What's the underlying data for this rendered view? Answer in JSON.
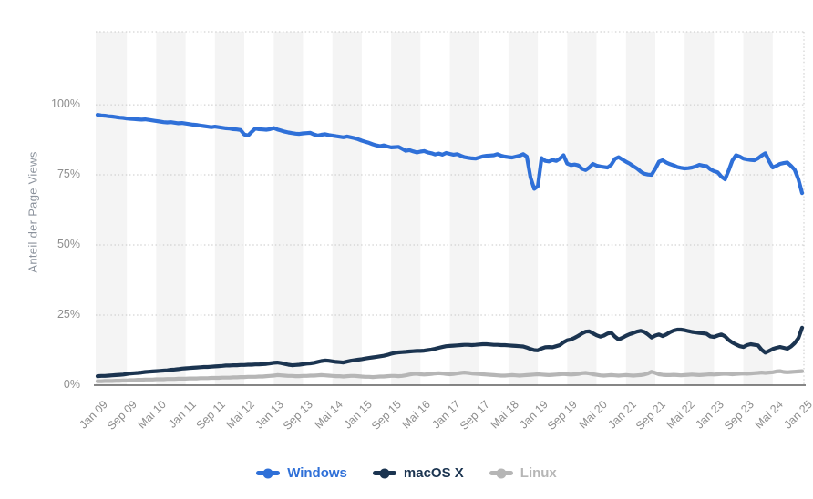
{
  "chart": {
    "y_axis_title": "Anteil der Page Views"
  },
  "colors": {
    "windows": "#2f70d8",
    "macos": "#1b3450",
    "linux": "#b6b6b6",
    "stripe": "#f4f4f4",
    "grid": "#c9c9c9",
    "axis": "#3f3f3f",
    "tick_text": "#8d8d8d"
  },
  "chart_data": {
    "type": "line",
    "title": "",
    "xlabel": "",
    "ylabel": "Anteil der Page Views",
    "ylim": [
      0,
      126
    ],
    "grid": "horizontal-dotted",
    "legend_position": "bottom-center",
    "x_unit": "monthly, Jan 2009 - Jan 2025",
    "x_tick_every_n_points": 8,
    "x_tick_labels": [
      "Jan 09",
      "Sep 09",
      "Mai 10",
      "Jan 11",
      "Sep 11",
      "Mai 12",
      "Jan 13",
      "Sep 13",
      "Mai 14",
      "Jan 15",
      "Sep 15",
      "Mai 16",
      "Jan 17",
      "Sep 17",
      "Mai 18",
      "Jan 19",
      "Sep 19",
      "Mai 20",
      "Jan 21",
      "Sep 21",
      "Mai 22",
      "Jan 23",
      "Sep 23",
      "Mai 24",
      "Jan 25"
    ],
    "y_ticks": [
      {
        "label": "0%",
        "value": 0
      },
      {
        "label": "25%",
        "value": 25
      },
      {
        "label": "50%",
        "value": 50
      },
      {
        "label": "75%",
        "value": 75
      },
      {
        "label": "100%",
        "value": 100
      }
    ],
    "series": [
      {
        "name": "Windows",
        "color": "#2f70d8",
        "values": [
          96.4,
          96.2,
          96.1,
          95.9,
          95.8,
          95.6,
          95.4,
          95.3,
          95.1,
          95.0,
          94.9,
          94.8,
          94.7,
          94.8,
          94.6,
          94.4,
          94.2,
          94.0,
          93.8,
          93.7,
          93.8,
          93.6,
          93.4,
          93.5,
          93.3,
          93.1,
          92.9,
          92.8,
          92.6,
          92.4,
          92.2,
          92.0,
          92.2,
          92.0,
          91.8,
          91.6,
          91.5,
          91.3,
          91.2,
          91.0,
          89.4,
          89.0,
          90.3,
          91.5,
          91.3,
          91.2,
          91.1,
          91.3,
          91.7,
          91.2,
          90.8,
          90.4,
          90.1,
          89.9,
          89.7,
          89.6,
          89.8,
          89.9,
          90.0,
          89.4,
          89.0,
          89.3,
          89.5,
          89.2,
          89.0,
          88.8,
          88.6,
          88.4,
          88.7,
          88.4,
          88.1,
          87.7,
          87.2,
          86.8,
          86.4,
          85.9,
          85.5,
          85.2,
          85.5,
          85.1,
          84.8,
          84.9,
          85.0,
          84.3,
          83.6,
          83.8,
          83.4,
          83.0,
          83.3,
          83.5,
          83.0,
          82.7,
          82.3,
          82.6,
          82.2,
          82.8,
          82.5,
          82.2,
          82.4,
          81.8,
          81.3,
          81.1,
          80.9,
          80.8,
          81.2,
          81.6,
          81.8,
          81.9,
          82.0,
          82.4,
          81.8,
          81.5,
          81.3,
          81.2,
          81.5,
          81.8,
          82.4,
          81.5,
          74.0,
          70.0,
          71.0,
          81.0,
          80.0,
          79.8,
          80.3,
          80.0,
          80.8,
          82.0,
          79.0,
          78.5,
          78.7,
          78.4,
          77.2,
          76.7,
          77.6,
          78.9,
          78.3,
          78.0,
          77.8,
          77.6,
          78.6,
          80.7,
          81.3,
          80.5,
          79.7,
          79.0,
          78.1,
          77.3,
          76.2,
          75.4,
          75.1,
          75.0,
          77.2,
          79.7,
          80.2,
          79.4,
          78.8,
          78.4,
          77.8,
          77.5,
          77.3,
          77.4,
          77.6,
          78.0,
          78.6,
          78.3,
          78.1,
          77.0,
          76.3,
          75.9,
          74.4,
          73.4,
          76.6,
          80.1,
          82.0,
          81.5,
          80.8,
          80.5,
          80.3,
          80.2,
          80.9,
          81.9,
          82.7,
          79.9,
          77.6,
          78.2,
          78.9,
          79.2,
          79.4,
          78.2,
          76.8,
          73.4,
          68.5
        ]
      },
      {
        "name": "macOS X",
        "color": "#1b3450",
        "values": [
          3.2,
          3.3,
          3.3,
          3.4,
          3.5,
          3.6,
          3.7,
          3.8,
          4.0,
          4.2,
          4.3,
          4.4,
          4.5,
          4.7,
          4.8,
          4.9,
          5.0,
          5.1,
          5.2,
          5.3,
          5.5,
          5.6,
          5.7,
          5.9,
          6.0,
          6.1,
          6.2,
          6.3,
          6.4,
          6.5,
          6.5,
          6.6,
          6.7,
          6.8,
          6.9,
          7.0,
          7.0,
          7.1,
          7.1,
          7.2,
          7.2,
          7.3,
          7.3,
          7.4,
          7.4,
          7.5,
          7.6,
          7.8,
          8.0,
          8.1,
          7.9,
          7.6,
          7.3,
          7.1,
          7.2,
          7.3,
          7.5,
          7.7,
          7.8,
          8.0,
          8.3,
          8.6,
          8.8,
          8.7,
          8.5,
          8.3,
          8.2,
          8.1,
          8.4,
          8.7,
          8.9,
          9.1,
          9.3,
          9.5,
          9.7,
          9.9,
          10.1,
          10.3,
          10.5,
          10.8,
          11.2,
          11.5,
          11.7,
          11.8,
          11.9,
          12.0,
          12.1,
          12.2,
          12.2,
          12.3,
          12.5,
          12.7,
          13.0,
          13.3,
          13.6,
          13.9,
          14.0,
          14.1,
          14.2,
          14.3,
          14.4,
          14.4,
          14.3,
          14.4,
          14.5,
          14.6,
          14.6,
          14.5,
          14.4,
          14.4,
          14.3,
          14.3,
          14.2,
          14.1,
          14.0,
          13.9,
          13.8,
          13.4,
          12.9,
          12.5,
          12.4,
          13.1,
          13.5,
          13.6,
          13.5,
          13.9,
          14.3,
          15.3,
          16.0,
          16.3,
          16.9,
          17.6,
          18.4,
          19.1,
          19.2,
          18.5,
          17.8,
          17.3,
          17.7,
          18.4,
          18.7,
          17.3,
          16.3,
          16.9,
          17.6,
          18.2,
          18.6,
          19.1,
          19.4,
          19.0,
          18.1,
          17.0,
          17.7,
          18.1,
          17.5,
          18.1,
          18.9,
          19.5,
          19.8,
          19.8,
          19.6,
          19.3,
          19.0,
          18.8,
          18.6,
          18.5,
          18.3,
          17.4,
          17.2,
          17.7,
          18.1,
          17.4,
          16.1,
          15.2,
          14.5,
          13.9,
          13.6,
          14.3,
          14.6,
          14.4,
          14.2,
          12.6,
          11.6,
          12.2,
          12.9,
          13.3,
          13.6,
          13.3,
          13.0,
          13.8,
          15.0,
          16.8,
          20.5
        ]
      },
      {
        "name": "Linux",
        "color": "#b6b6b6",
        "values": [
          1.4,
          1.4,
          1.5,
          1.5,
          1.5,
          1.6,
          1.6,
          1.7,
          1.7,
          1.8,
          1.8,
          1.9,
          1.9,
          2.0,
          2.0,
          2.0,
          2.1,
          2.1,
          2.1,
          2.2,
          2.2,
          2.2,
          2.3,
          2.3,
          2.3,
          2.4,
          2.4,
          2.4,
          2.5,
          2.5,
          2.5,
          2.6,
          2.6,
          2.6,
          2.7,
          2.7,
          2.7,
          2.8,
          2.8,
          2.9,
          2.9,
          3.0,
          3.0,
          3.0,
          3.1,
          3.1,
          3.2,
          3.3,
          3.4,
          3.6,
          3.5,
          3.4,
          3.3,
          3.3,
          3.2,
          3.2,
          3.3,
          3.3,
          3.4,
          3.4,
          3.5,
          3.6,
          3.5,
          3.4,
          3.3,
          3.2,
          3.2,
          3.1,
          3.2,
          3.3,
          3.3,
          3.2,
          3.1,
          3.0,
          3.0,
          2.9,
          3.0,
          3.1,
          3.1,
          3.2,
          3.3,
          3.3,
          3.2,
          3.3,
          3.5,
          3.8,
          4.0,
          4.1,
          3.9,
          3.8,
          3.9,
          4.0,
          4.2,
          4.3,
          4.2,
          4.0,
          3.9,
          4.0,
          4.2,
          4.4,
          4.5,
          4.4,
          4.2,
          4.1,
          4.0,
          3.9,
          3.8,
          3.7,
          3.6,
          3.5,
          3.4,
          3.4,
          3.5,
          3.6,
          3.5,
          3.4,
          3.5,
          3.6,
          3.7,
          3.8,
          3.9,
          3.8,
          3.7,
          3.6,
          3.7,
          3.8,
          3.9,
          4.0,
          3.9,
          3.8,
          3.9,
          4.0,
          4.3,
          4.4,
          4.2,
          3.9,
          3.7,
          3.5,
          3.4,
          3.5,
          3.6,
          3.5,
          3.4,
          3.5,
          3.6,
          3.5,
          3.4,
          3.5,
          3.6,
          3.8,
          4.2,
          4.8,
          4.4,
          3.9,
          3.7,
          3.6,
          3.6,
          3.7,
          3.6,
          3.5,
          3.6,
          3.7,
          3.8,
          3.7,
          3.6,
          3.7,
          3.8,
          3.9,
          3.8,
          3.9,
          4.0,
          4.1,
          4.0,
          3.9,
          4.0,
          4.1,
          4.2,
          4.1,
          4.2,
          4.3,
          4.4,
          4.5,
          4.4,
          4.5,
          4.6,
          4.9,
          5.0,
          4.7,
          4.6,
          4.7,
          4.8,
          4.9,
          5.0
        ]
      }
    ]
  }
}
